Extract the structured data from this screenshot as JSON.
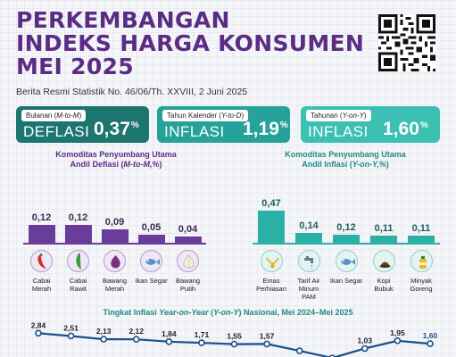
{
  "header": {
    "title_lines": [
      "PERKEMBANGAN",
      "INDEKS HARGA KONSUMEN",
      "MEI 2025"
    ],
    "subtitle": "Berita Resmi Statistik No. 46/06/Th. XXVIII, 2 Juni 2025"
  },
  "cards": [
    {
      "label_prefix": "Bulanan (",
      "label_italic": "M-to-M",
      "label_suffix": ")",
      "kind": "DEFLASI",
      "value": "0,37",
      "unit": "%",
      "color": "#1d7570"
    },
    {
      "label_prefix": "Tahun Kalender (",
      "label_italic": "Y-to-D",
      "label_suffix": ")",
      "kind": "INFLASI",
      "value": "1,19",
      "unit": "%",
      "color": "#27a29a"
    },
    {
      "label_prefix": "Tahunan (",
      "label_italic": "Y-on-Y",
      "label_suffix": ")",
      "kind": "INFLASI",
      "value": "1,60",
      "unit": "%",
      "color": "#3cc0b4"
    }
  ],
  "left_section": {
    "title_line1": "Komoditas Penyumbang Utama",
    "title_line2_prefix": "Andil Deflasi (",
    "title_line2_italic": "M-to-M,%",
    "title_line2_suffix": ")",
    "color": "#5b2c83"
  },
  "right_section": {
    "title_line1": "Komoditas Penyumbang Utama",
    "title_line2_prefix": "Andil Inflasi (",
    "title_line2_italic": "Y-on-Y,%",
    "title_line2_suffix": ")",
    "color": "#1f8b84"
  },
  "line_section": {
    "title_prefix": "Tingkat Inflasi ",
    "title_italic1": "Year-on-Year",
    "title_mid": " (",
    "title_italic2": "Y-on-Y",
    "title_suffix": ") Nasional, Mei 2024–Mei 2025"
  },
  "chart_data": [
    {
      "type": "bar",
      "categories": [
        "Cabai Merah",
        "Cabai Rawit",
        "Bawang Merah",
        "Ikan Segar",
        "Bawang Putih"
      ],
      "value_labels": [
        "0,12",
        "0,12",
        "0,09",
        "0,05",
        "0,04"
      ],
      "values": [
        0.12,
        0.12,
        0.09,
        0.05,
        0.04
      ],
      "icons": [
        "red-chili-icon",
        "green-chili-icon",
        "shallot-icon",
        "fish-icon",
        "garlic-icon"
      ],
      "color": "#6a3d9a"
    },
    {
      "type": "bar",
      "categories": [
        "Emas Perhiasan",
        "Tarif Air Minum PAM",
        "Ikan Segar",
        "Kopi Bubuk",
        "Minyak Goreng"
      ],
      "value_labels": [
        "0,47",
        "0,14",
        "0,12",
        "0,11",
        "0,11"
      ],
      "values": [
        0.47,
        0.14,
        0.12,
        0.11,
        0.11
      ],
      "icons": [
        "gold-jewelry-icon",
        "water-tap-icon",
        "fish-icon",
        "coffee-powder-icon",
        "cooking-oil-icon"
      ],
      "color": "#2bb0a5"
    },
    {
      "type": "line",
      "value_labels": [
        "2,84",
        "2,51",
        "2,13",
        "2,12",
        "1,84",
        "1,71",
        "1,55",
        "1,57",
        "",
        "",
        "1,03",
        "1,95",
        "1,60"
      ],
      "values": [
        2.84,
        2.51,
        2.13,
        2.12,
        1.84,
        1.71,
        1.55,
        1.57,
        0.76,
        -0.09,
        1.03,
        1.95,
        1.6
      ],
      "ylim": [
        -0.5,
        3.3
      ],
      "color": "#1a4f8b"
    }
  ]
}
